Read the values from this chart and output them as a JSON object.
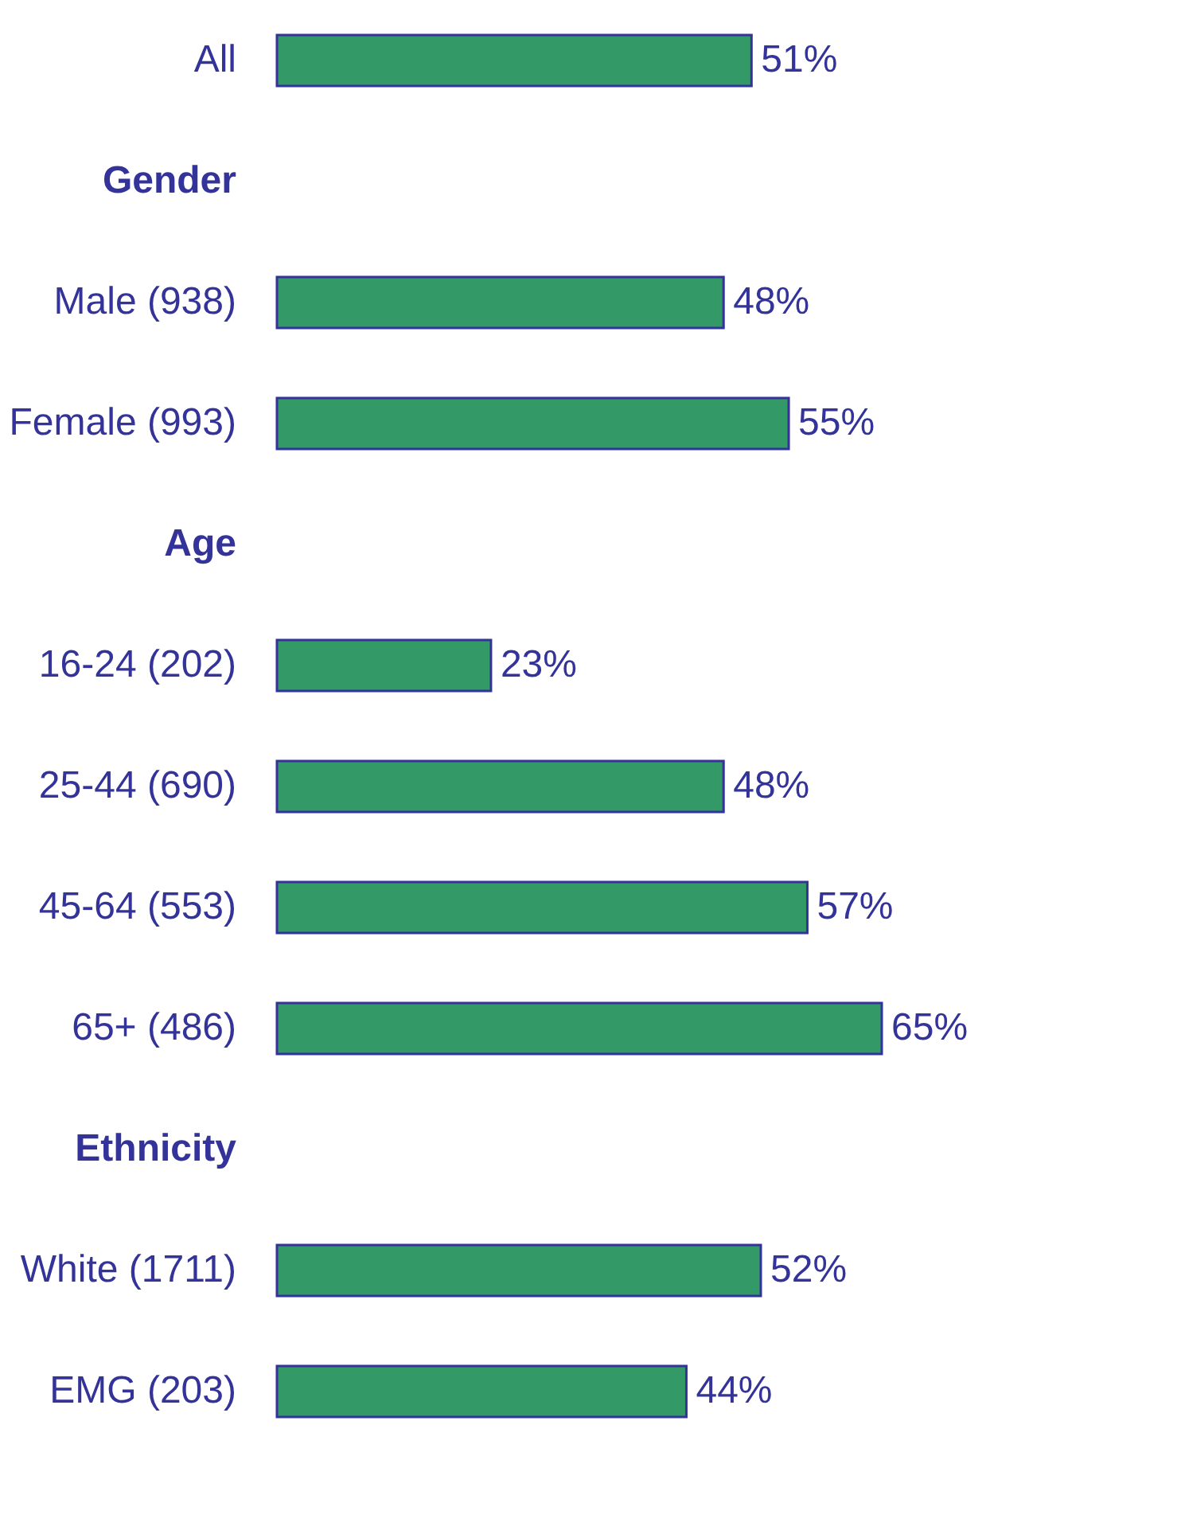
{
  "chart_data": {
    "type": "bar",
    "orientation": "horizontal",
    "categories": [
      "All",
      "Gender",
      "Male (938)",
      "Female (993)",
      "Age",
      "16-24 (202)",
      "25-44 (690)",
      "45-64 (553)",
      "65+ (486)",
      "Ethnicity",
      "White (1711)",
      "EMG (203)"
    ],
    "values": [
      51,
      null,
      48,
      55,
      null,
      23,
      48,
      57,
      65,
      null,
      52,
      44
    ],
    "value_labels": [
      "51%",
      null,
      "48%",
      "55%",
      null,
      "23%",
      "48%",
      "57%",
      "65%",
      null,
      "52%",
      "44%"
    ],
    "color": "#339966"
  }
}
